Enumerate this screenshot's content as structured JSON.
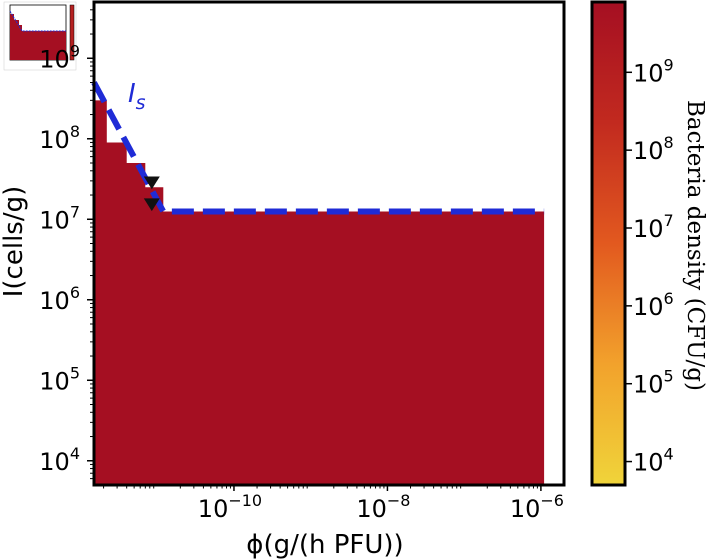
{
  "chart_data": {
    "type": "heatmap",
    "title": "",
    "xlabel": "ϕ(g/(h PFU))",
    "ylabel": "I(cells/g)",
    "x_scale": "log",
    "y_scale": "log",
    "xlim": [
      1.5e-12,
      2e-06
    ],
    "ylim": [
      5000.0,
      5000000000.0
    ],
    "x_ticks": [
      {
        "value": 1e-10,
        "base": "10",
        "exp": "−10"
      },
      {
        "value": 1e-08,
        "base": "10",
        "exp": "−8"
      },
      {
        "value": 1e-06,
        "base": "10",
        "exp": "−6"
      }
    ],
    "y_ticks": [
      {
        "value": 10000.0,
        "base": "10",
        "exp": "4"
      },
      {
        "value": 100000.0,
        "base": "10",
        "exp": "5"
      },
      {
        "value": 1000000.0,
        "base": "10",
        "exp": "6"
      },
      {
        "value": 10000000.0,
        "base": "10",
        "exp": "7"
      },
      {
        "value": 100000000.0,
        "base": "10",
        "exp": "8"
      },
      {
        "value": 1000000000.0,
        "base": "10",
        "exp": "9"
      }
    ],
    "region_color": "#a50f22",
    "region_boundary": [
      {
        "x": 1.5e-12,
        "y": 300000000.0
      },
      {
        "x": 2.2e-12,
        "y": 300000000.0
      },
      {
        "x": 2.2e-12,
        "y": 90000000.0
      },
      {
        "x": 4e-12,
        "y": 90000000.0
      },
      {
        "x": 4e-12,
        "y": 50000000.0
      },
      {
        "x": 7e-12,
        "y": 50000000.0
      },
      {
        "x": 7e-12,
        "y": 25000000.0
      },
      {
        "x": 1.2e-11,
        "y": 25000000.0
      },
      {
        "x": 1.2e-11,
        "y": 12500000.0
      },
      {
        "x": 1.1e-06,
        "y": 12500000.0
      },
      {
        "x": 1.1e-06,
        "y": 5000.0
      },
      {
        "x": 1.5e-12,
        "y": 5000.0
      }
    ],
    "series": [
      {
        "name": "I_s",
        "label_main": "I",
        "label_sub": "s",
        "style": "dashed",
        "color": "#1f2bd6",
        "points": [
          {
            "x": 1.5e-12,
            "y": 500000000.0
          },
          {
            "x": 1.2e-11,
            "y": 12500000.0
          },
          {
            "x": 1.1e-06,
            "y": 12500000.0
          }
        ]
      }
    ],
    "markers": [
      {
        "x": 8.5e-12,
        "y": 29000000.0,
        "shape": "triangle-down",
        "color": "#111111"
      },
      {
        "x": 8.5e-12,
        "y": 15500000.0,
        "shape": "triangle-down",
        "color": "#111111"
      }
    ],
    "colorbar": {
      "label": "Bacteria density (CFU/g)",
      "range": [
        5000.0,
        8000000000.0
      ],
      "scale": "log",
      "colors": [
        "#f0d43a",
        "#f2a22c",
        "#e2591f",
        "#c22a1f",
        "#a50f22"
      ],
      "ticks": [
        {
          "value": 10000.0,
          "base": "10",
          "exp": "4"
        },
        {
          "value": 100000.0,
          "base": "10",
          "exp": "5"
        },
        {
          "value": 1000000.0,
          "base": "10",
          "exp": "6"
        },
        {
          "value": 10000000.0,
          "base": "10",
          "exp": "7"
        },
        {
          "value": 100000000.0,
          "base": "10",
          "exp": "8"
        },
        {
          "value": 1000000000.0,
          "base": "10",
          "exp": "9"
        }
      ]
    }
  }
}
